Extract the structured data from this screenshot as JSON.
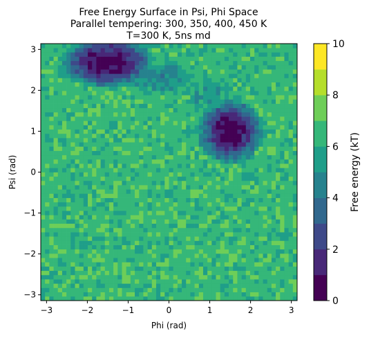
{
  "chart_data": {
    "type": "heatmap",
    "title_lines": [
      "Free Energy Surface in Psi, Phi Space",
      "Parallel tempering: 300, 350, 400, 450 K",
      "T=300 K, 5ns md"
    ],
    "xlabel": "Phi (rad)",
    "ylabel": "Psi (rad)",
    "xlim": [
      -3.14159,
      3.14159
    ],
    "ylim": [
      -3.14159,
      3.14159
    ],
    "x_ticks": [
      -3,
      -2,
      -1,
      0,
      1,
      2,
      3
    ],
    "y_ticks": [
      -3,
      -2,
      -1,
      0,
      1,
      2,
      3
    ],
    "x_tick_labels": [
      "−3",
      "−2",
      "−1",
      "0",
      "1",
      "2",
      "3"
    ],
    "y_tick_labels": [
      "−3",
      "−2",
      "−1",
      "0",
      "1",
      "2",
      "3"
    ],
    "bins": 60,
    "colorbar": {
      "label": "Free energy (kT)",
      "range": [
        0,
        10
      ],
      "levels": [
        0,
        1,
        2,
        3,
        4,
        5,
        6,
        7,
        8,
        9,
        10
      ],
      "ticks": [
        0,
        2,
        4,
        6,
        8,
        10
      ],
      "tick_labels": [
        "0",
        "2",
        "4",
        "6",
        "8",
        "10"
      ],
      "colors": [
        "#440154",
        "#482878",
        "#3e4989",
        "#31688e",
        "#26828e",
        "#1f9e89",
        "#35b779",
        "#6ece58",
        "#b5de2b",
        "#fde725"
      ]
    },
    "basins": [
      {
        "phi": -1.5,
        "psi": 2.7,
        "min_kT": 0.2
      },
      {
        "phi": 1.5,
        "psi": 1.0,
        "min_kT": 0.3
      }
    ]
  }
}
